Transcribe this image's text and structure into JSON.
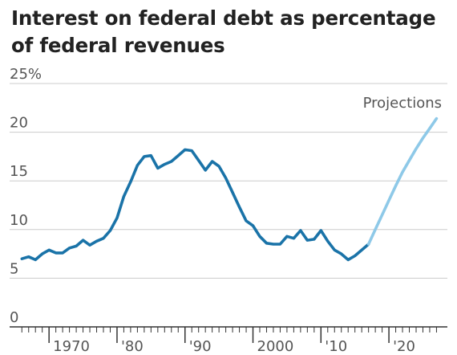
{
  "chart_data": {
    "type": "line",
    "title": "Interest on federal debt as percentage of federal revenues",
    "xlabel": "",
    "ylabel": "",
    "xlim": [
      1965,
      2028
    ],
    "ylim": [
      0,
      25
    ],
    "grid": true,
    "y_ticks": [
      {
        "value": 0,
        "label": "0"
      },
      {
        "value": 5,
        "label": "5"
      },
      {
        "value": 10,
        "label": "10"
      },
      {
        "value": 15,
        "label": "15"
      },
      {
        "value": 20,
        "label": "20"
      },
      {
        "value": 25,
        "label": "25%"
      }
    ],
    "x_ticks": [
      {
        "value": 1970,
        "label": "1970"
      },
      {
        "value": 1980,
        "label": "'80"
      },
      {
        "value": 1990,
        "label": "'90"
      },
      {
        "value": 2000,
        "label": "2000"
      },
      {
        "value": 2010,
        "label": "'10"
      },
      {
        "value": 2020,
        "label": "'20"
      }
    ],
    "annotation": "Projections",
    "colors": {
      "actual": "#1a73a8",
      "projection": "#8ec9e8",
      "grid": "#cccccc",
      "axis": "#333333"
    },
    "series": [
      {
        "style": "actual",
        "x": [
          1966,
          1967,
          1968,
          1969,
          1970,
          1971,
          1972,
          1973,
          1974,
          1975,
          1976,
          1977,
          1978,
          1979,
          1980,
          1981,
          1982,
          1983,
          1984,
          1985,
          1986,
          1987,
          1988,
          1989,
          1990,
          1991,
          1992,
          1993,
          1994,
          1995,
          1996,
          1997,
          1998,
          1999,
          2000,
          2001,
          2002,
          2003,
          2004,
          2005,
          2006,
          2007,
          2008,
          2009,
          2010,
          2011,
          2012,
          2013,
          2014,
          2015,
          2016,
          2017
        ],
        "y": [
          7.0,
          7.2,
          6.9,
          7.5,
          7.9,
          7.6,
          7.6,
          8.1,
          8.3,
          8.9,
          8.4,
          8.8,
          9.1,
          9.9,
          11.2,
          13.4,
          14.9,
          16.6,
          17.5,
          17.6,
          16.3,
          16.7,
          17.0,
          17.6,
          18.2,
          18.1,
          17.1,
          16.1,
          17.0,
          16.5,
          15.3,
          13.8,
          12.3,
          10.9,
          10.4,
          9.3,
          8.6,
          8.5,
          8.5,
          9.3,
          9.1,
          9.9,
          8.9,
          9.0,
          9.9,
          8.8,
          7.9,
          7.5,
          6.9,
          7.3,
          7.9,
          8.5
        ]
      },
      {
        "style": "projection",
        "x": [
          2017,
          2018,
          2019,
          2020,
          2021,
          2022,
          2023,
          2024,
          2025,
          2026,
          2027
        ],
        "y": [
          8.5,
          10.0,
          11.5,
          13.0,
          14.5,
          15.9,
          17.1,
          18.3,
          19.4,
          20.4,
          21.4
        ]
      }
    ]
  }
}
